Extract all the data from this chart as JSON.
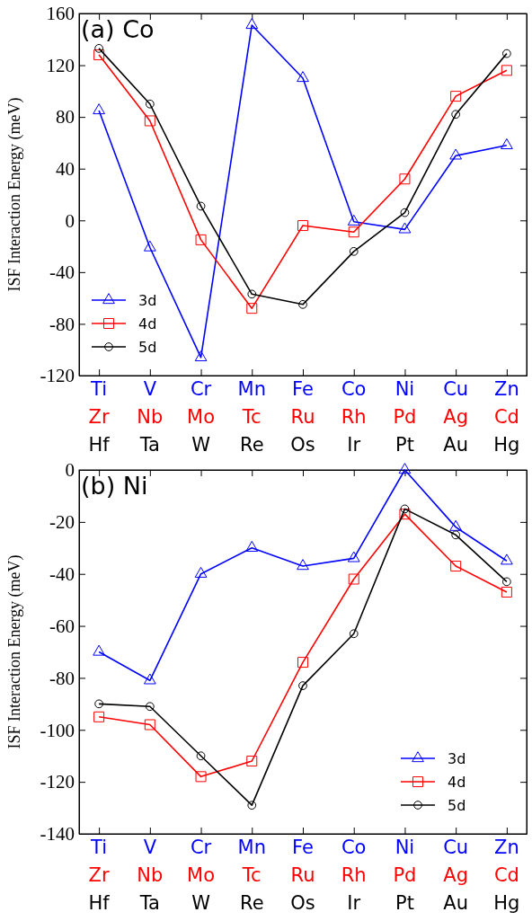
{
  "chart_data": [
    {
      "type": "line",
      "title": "(a) Co",
      "ylabel": "ISF Interaction Energy (meV)",
      "categories": [
        "Ti\nZr\nHf",
        "V\nNb\nTa",
        "Cr\nMo\nW",
        "Mn\nTc\nRe",
        "Fe\nRu\nOs",
        "Co\nRh\nIr",
        "Ni\nPd\nPt",
        "Cu\nAg\nAu",
        "Zn\nCd\nHg"
      ],
      "series": [
        {
          "name": "3d",
          "color": "#0000ff",
          "marker": "triangle",
          "values": [
            85,
            -21,
            -106,
            151,
            110,
            -1,
            -7,
            50,
            58
          ]
        },
        {
          "name": "4d",
          "color": "#ff0000",
          "marker": "square",
          "values": [
            128,
            77,
            -15,
            -68,
            -4,
            -9,
            32,
            96,
            116
          ]
        },
        {
          "name": "5d",
          "color": "#000000",
          "marker": "circle",
          "values": [
            133,
            90,
            11,
            -57,
            -65,
            -24,
            6,
            82,
            129
          ]
        }
      ],
      "ylim": [
        -120,
        160
      ],
      "yticks": [
        -120,
        -80,
        -40,
        0,
        40,
        80,
        120,
        160
      ],
      "legend": "bottom left",
      "grid": false
    },
    {
      "type": "line",
      "title": "(b) Ni",
      "ylabel": "ISF Interaction Energy (meV)",
      "categories": [
        "Ti\nZr\nHf",
        "V\nNb\nTa",
        "Cr\nMo\nW",
        "Mn\nTc\nRe",
        "Fe\nRu\nOs",
        "Co\nRh\nIr",
        "Ni\nPd\nPt",
        "Cu\nAg\nAu",
        "Zn\nCd\nHg"
      ],
      "series": [
        {
          "name": "3d",
          "color": "#0000ff",
          "marker": "triangle",
          "values": [
            -70,
            -81,
            -40,
            -30,
            -37,
            -34,
            0,
            -22,
            -35
          ]
        },
        {
          "name": "4d",
          "color": "#ff0000",
          "marker": "square",
          "values": [
            -95,
            -98,
            -118,
            -112,
            -74,
            -42,
            -17,
            -37,
            -47
          ]
        },
        {
          "name": "5d",
          "color": "#000000",
          "marker": "circle",
          "values": [
            -90,
            -91,
            -110,
            -129,
            -83,
            -63,
            -15,
            -25,
            -43
          ]
        }
      ],
      "ylim": [
        -140,
        0
      ],
      "yticks": [
        -140,
        -120,
        -100,
        -80,
        -60,
        -40,
        -20,
        0
      ],
      "legend": "bottom right",
      "grid": false
    }
  ]
}
